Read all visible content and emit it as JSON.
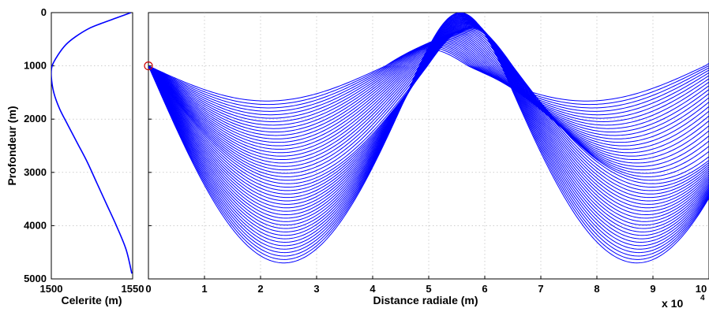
{
  "chart_data": [
    {
      "type": "line",
      "name": "sound-speed-profile",
      "xlabel": "Celerite (m)",
      "ylabel": "Profondeur (m)",
      "xlim": [
        1500,
        1550
      ],
      "ylim": [
        0,
        5000
      ],
      "y_reversed": true,
      "x_ticks": [
        "1500",
        "1550"
      ],
      "y_ticks": [
        "0",
        "1000",
        "2000",
        "3000",
        "4000",
        "5000"
      ],
      "grid": true,
      "line_color": "#0000ff",
      "series": [
        {
          "x": [
            1549,
            1540,
            1531,
            1523,
            1515,
            1509,
            1504,
            1500.5,
            1500,
            1501.5,
            1505,
            1510,
            1516,
            1522,
            1528,
            1534,
            1540,
            1546,
            1549.5
          ],
          "y": [
            0,
            100,
            200,
            300,
            450,
            600,
            800,
            1000,
            1200,
            1500,
            1800,
            2100,
            2450,
            2800,
            3200,
            3600,
            4000,
            4450,
            4900
          ]
        }
      ]
    },
    {
      "type": "line",
      "name": "ray-trace",
      "xlabel": "Distance radiale (m)",
      "x_exponent_label": "x 10",
      "x_exponent": "4",
      "xlim": [
        0,
        10
      ],
      "ylim": [
        0,
        5000
      ],
      "y_reversed": true,
      "x_ticks": [
        "0",
        "1",
        "2",
        "3",
        "4",
        "5",
        "6",
        "7",
        "8",
        "9",
        "10"
      ],
      "grid": true,
      "line_color": "#0000ff",
      "source": {
        "x": 0,
        "y": 1000,
        "color": "#cc0000"
      },
      "ray_family": {
        "count": 48,
        "source_depth": 1000,
        "axis_depth": 1000,
        "min_turning_depth": 1660,
        "max_turning_depth": 4700,
        "shallowest_upper_turning_depth": 0,
        "first_lower_turn_range_min": 2.35,
        "first_lower_turn_range_max": 2.6
      }
    }
  ]
}
